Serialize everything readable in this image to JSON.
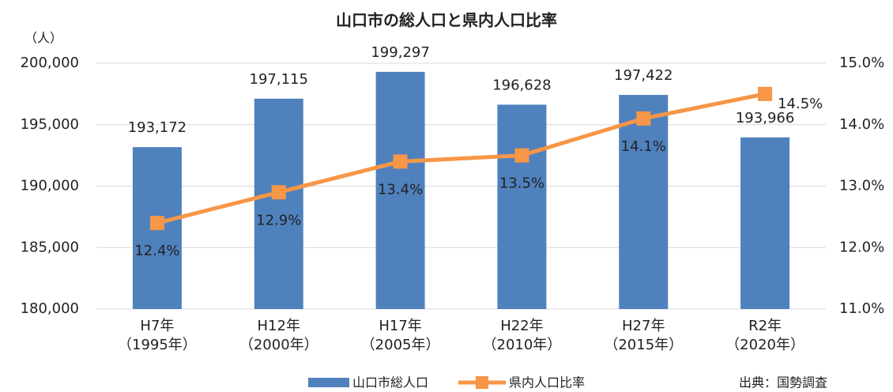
{
  "chart_data": {
    "type": "bar_line",
    "title": "山口市の総人口と県内人口比率",
    "y_unit": "（人）",
    "source": "出典：国勢調査",
    "categories": [
      [
        "H7年",
        "（1995年）"
      ],
      [
        "H12年",
        "（2000年）"
      ],
      [
        "H17年",
        "（2005年）"
      ],
      [
        "H22年",
        "（2010年）"
      ],
      [
        "H27年",
        "（2015年）"
      ],
      [
        "R2年",
        "（2020年）"
      ]
    ],
    "series": [
      {
        "name": "山口市総人口",
        "type": "bar",
        "color": "#4f81bd",
        "axis": "y",
        "values": [
          193172,
          197115,
          199297,
          196628,
          197422,
          193966
        ],
        "value_labels": [
          "193,172",
          "197,115",
          "199,297",
          "196,628",
          "197,422",
          "193,966"
        ]
      },
      {
        "name": "県内人口比率",
        "type": "line",
        "color": "#f79646",
        "axis": "y2",
        "values": [
          12.4,
          12.9,
          13.4,
          13.5,
          14.1,
          14.5
        ],
        "value_labels": [
          "12.4%",
          "12.9%",
          "13.4%",
          "13.5%",
          "14.1%",
          "14.5%"
        ]
      }
    ],
    "ylim": [
      180000,
      200000
    ],
    "yticks": [
      {
        "value": 180000,
        "label": "180,000"
      },
      {
        "value": 185000,
        "label": "185,000"
      },
      {
        "value": 190000,
        "label": "190,000"
      },
      {
        "value": 195000,
        "label": "195,000"
      },
      {
        "value": 200000,
        "label": "200,000"
      }
    ],
    "y2lim": [
      11,
      15
    ],
    "y2ticks": [
      {
        "value": 11,
        "label": "11.0%"
      },
      {
        "value": 12,
        "label": "12.0%"
      },
      {
        "value": 13,
        "label": "13.0%"
      },
      {
        "value": 14,
        "label": "14.0%"
      },
      {
        "value": 15,
        "label": "15.0%"
      }
    ],
    "grid": true,
    "legend": "bottom"
  }
}
